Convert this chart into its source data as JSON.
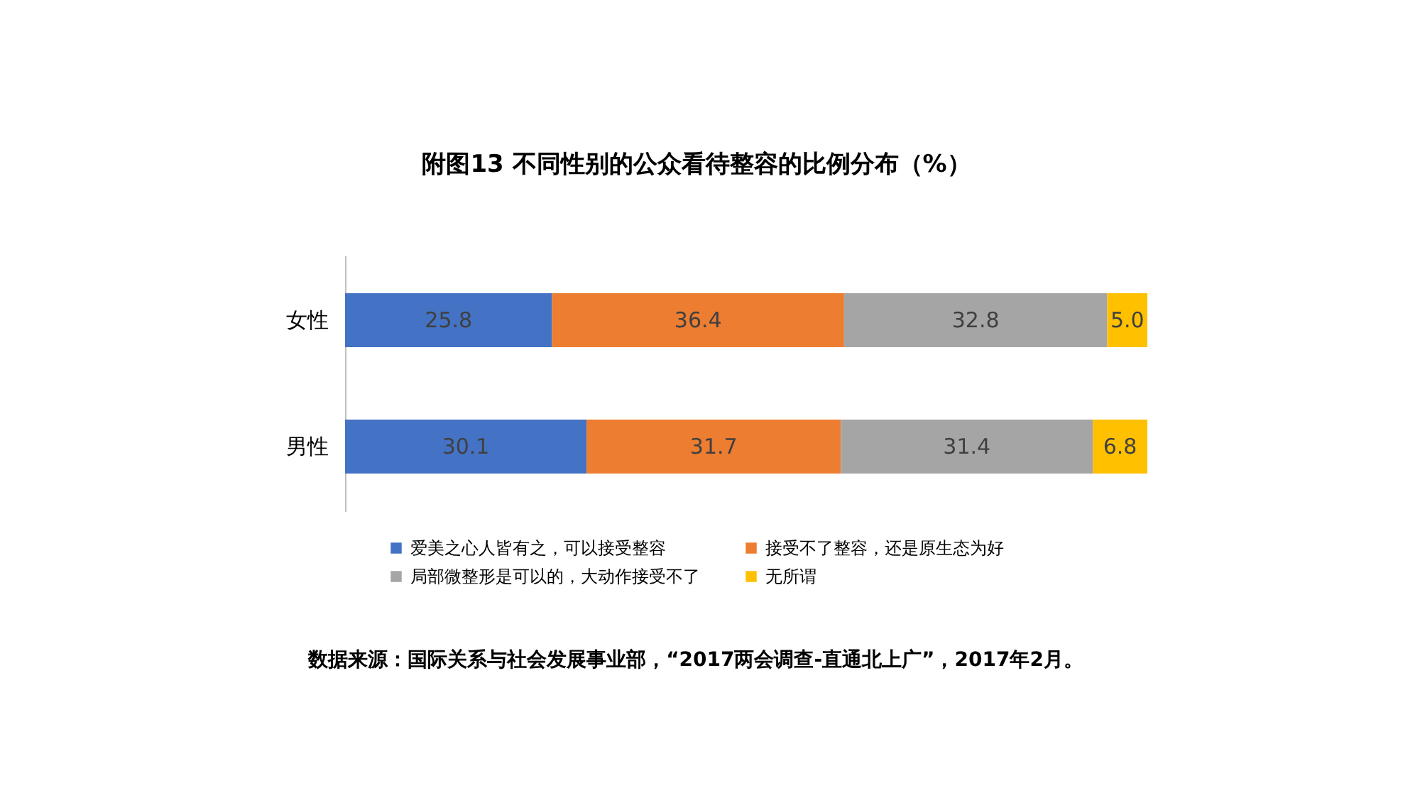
{
  "chart_data": {
    "type": "bar",
    "orientation": "horizontal",
    "stacked": true,
    "title": "附图13 不同性别的公众看待整容的比例分布（%）",
    "categories": [
      "女性",
      "男性"
    ],
    "series": [
      {
        "name": "爱美之心人皆有之，可以接受整容",
        "color": "#4472c4",
        "values": [
          25.8,
          30.1
        ],
        "value_labels": [
          "25.8",
          "30.1"
        ]
      },
      {
        "name": "接受不了整容，还是原生态为好",
        "color": "#ed7d31",
        "values": [
          36.4,
          31.7
        ],
        "value_labels": [
          "36.4",
          "31.7"
        ]
      },
      {
        "name": "局部微整形是可以的，大动作接受不了",
        "color": "#a5a5a5",
        "values": [
          32.8,
          31.4
        ],
        "value_labels": [
          "32.8",
          "31.4"
        ]
      },
      {
        "name": "无所谓",
        "color": "#ffc000",
        "values": [
          5.0,
          6.8
        ],
        "value_labels": [
          "5.0",
          "6.8"
        ]
      }
    ],
    "xlim": [
      0,
      100
    ],
    "legend": "bottom",
    "tick_labels": "y",
    "annotations": [
      "数据来源：国际关系与社会发展事业部，“2017两会调查-直通北上广”，2017年2月。"
    ]
  }
}
